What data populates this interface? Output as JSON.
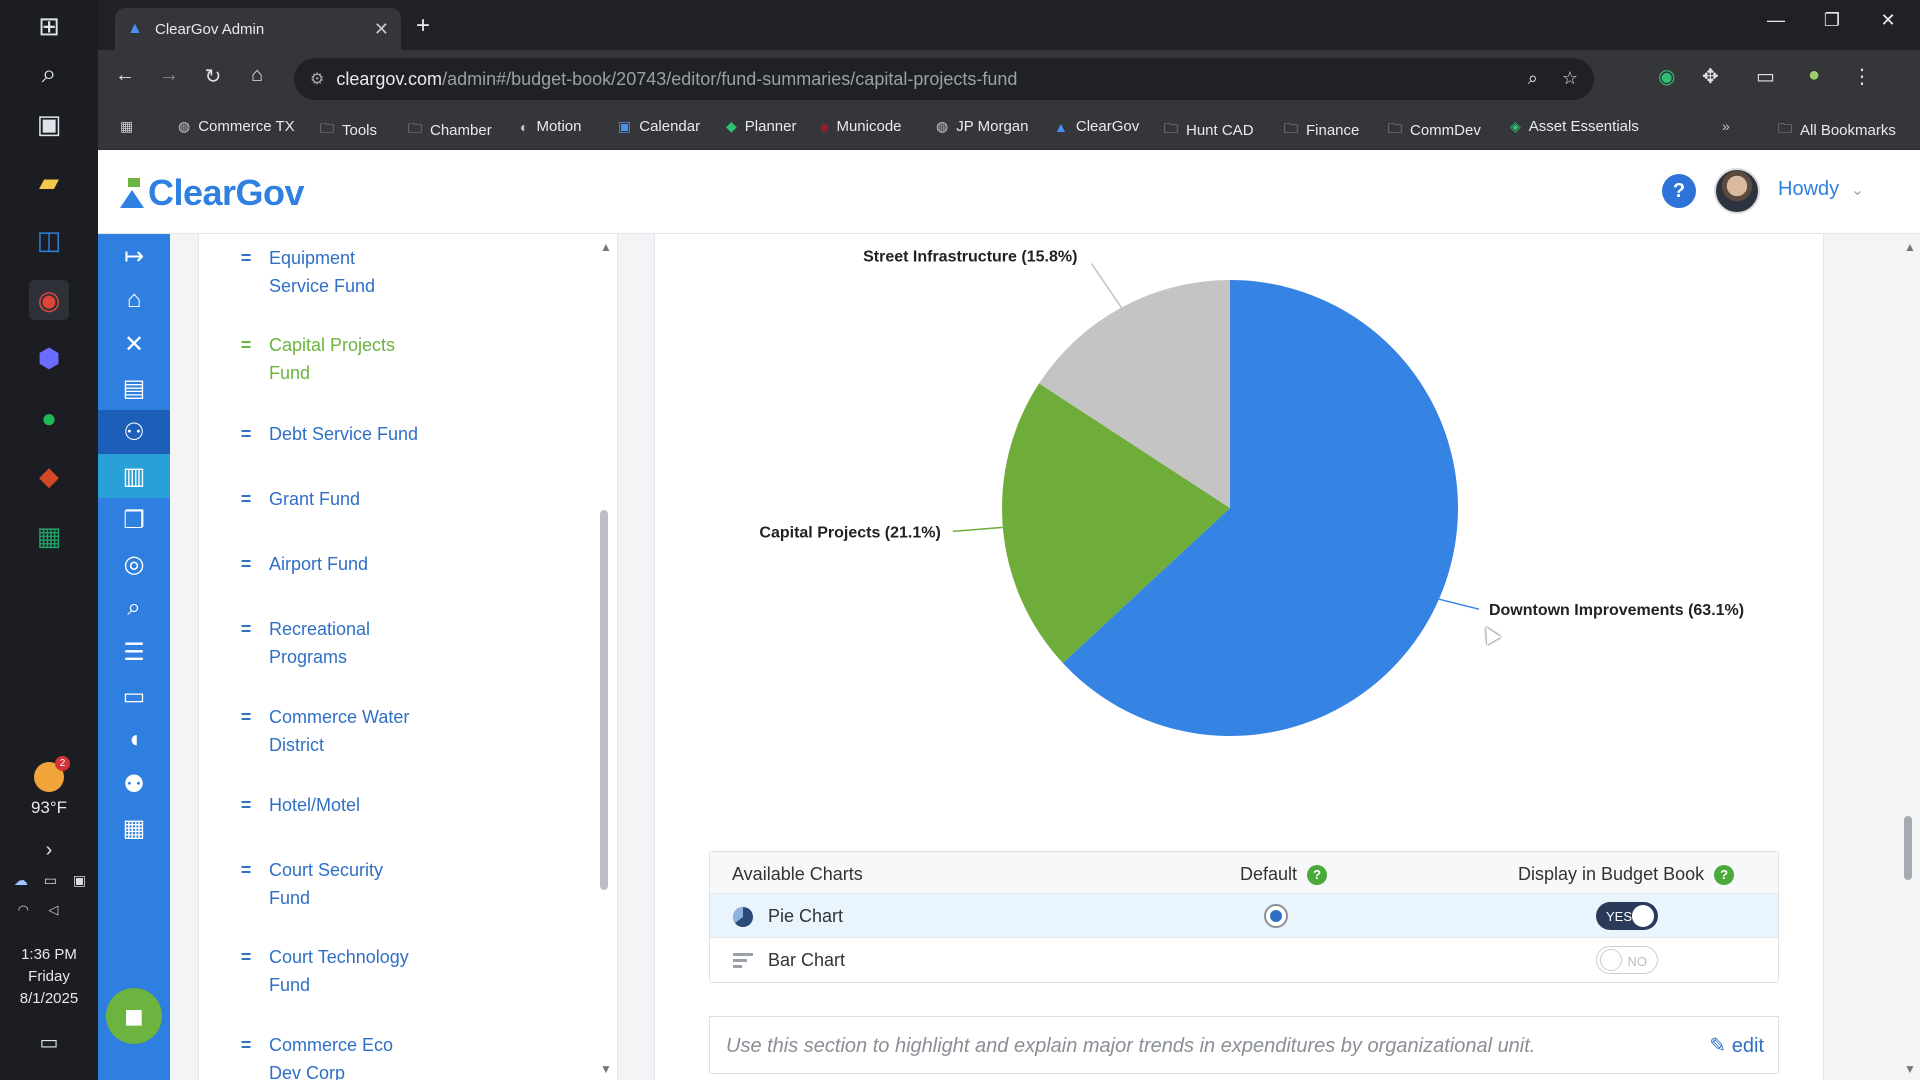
{
  "browser": {
    "tab_title": "ClearGov Admin",
    "url_host": "cleargov.com",
    "url_path": "/admin#/budget-book/20743/editor/fund-summaries/capital-projects-fund",
    "bookmarks": [
      "Commerce TX",
      "Tools",
      "Chamber",
      "Motion",
      "Calendar",
      "Planner",
      "Municode",
      "JP Morgan",
      "ClearGov",
      "Hunt CAD",
      "Finance",
      "CommDev",
      "Asset Essentials"
    ],
    "all_bookmarks_label": "All Bookmarks"
  },
  "taskbar": {
    "weather_temp": "93°F",
    "weather_badge": "2",
    "time": "1:36 PM",
    "day": "Friday",
    "date": "8/1/2025"
  },
  "header": {
    "logo_text": "ClearGov",
    "help_label": "?",
    "user_greeting": "Howdy"
  },
  "funds": [
    {
      "label": "Equipment Service Fund",
      "active": false
    },
    {
      "label": "Capital Projects Fund",
      "active": true
    },
    {
      "label": "Debt Service Fund",
      "active": false
    },
    {
      "label": "Grant Fund",
      "active": false
    },
    {
      "label": "Airport Fund",
      "active": false
    },
    {
      "label": "Recreational Programs",
      "active": false
    },
    {
      "label": "Commerce Water District",
      "active": false
    },
    {
      "label": "Hotel/Motel",
      "active": false
    },
    {
      "label": "Court Security Fund",
      "active": false
    },
    {
      "label": "Court Technology Fund",
      "active": false
    },
    {
      "label": "Commerce Eco Dev Corp",
      "active": false
    }
  ],
  "chart_data": {
    "type": "pie",
    "slices": [
      {
        "label": "Downtown Improvements (63.1%)",
        "value": 63.1,
        "color": "#3584e4"
      },
      {
        "label": "Capital Projects (21.1%)",
        "value": 21.1,
        "color": "#6fad3b"
      },
      {
        "label": "Street Infrastructure (15.8%)",
        "value": 15.8,
        "color": "#c4c4c4"
      }
    ]
  },
  "charts_table": {
    "col_available": "Available Charts",
    "col_default": "Default",
    "col_display": "Display in Budget Book",
    "rows": [
      {
        "name": "Pie Chart",
        "default": true,
        "display": true,
        "toggle_label": "YES"
      },
      {
        "name": "Bar Chart",
        "default": false,
        "display": false,
        "toggle_label": "NO"
      }
    ]
  },
  "note": {
    "text": "Use this section to highlight and explain major trends in expenditures by organizational unit.",
    "edit_label": "edit"
  }
}
